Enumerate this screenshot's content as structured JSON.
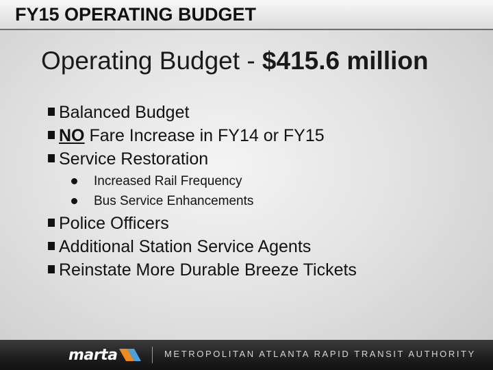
{
  "header": {
    "title": "FY15 OPERATING BUDGET"
  },
  "subtitle": {
    "prefix": "Operating Budget - ",
    "amount": "$415.6 million"
  },
  "bullets": {
    "b1": "Balanced Budget",
    "b2_bold": "NO",
    "b2_rest": " Fare Increase in FY14 or FY15",
    "b3": "Service Restoration",
    "sub1": "Increased Rail Frequency",
    "sub2": "Bus Service Enhancements",
    "b4": "Police Officers",
    "b5": "Additional Station Service Agents",
    "b6": "Reinstate More Durable Breeze Tickets"
  },
  "footer": {
    "logo": "marta",
    "authority": "METROPOLITAN ATLANTA RAPID TRANSIT AUTHORITY"
  },
  "colors": {
    "footer_bg": "#1e1e1e",
    "logo_orange": "#f08a1c",
    "logo_blue": "#4aa3df"
  }
}
